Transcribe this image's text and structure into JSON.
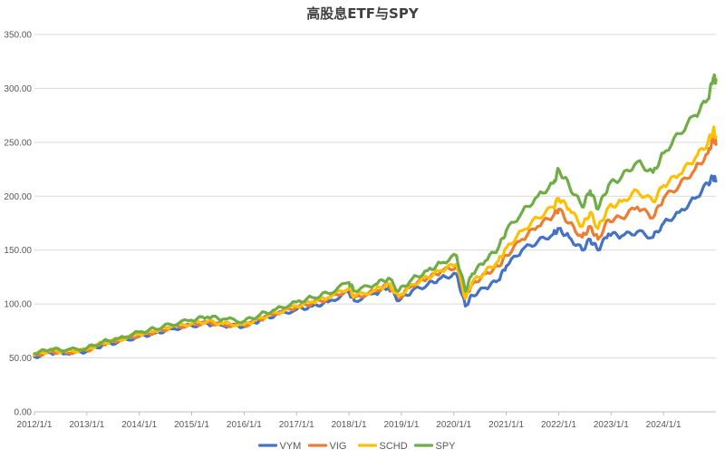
{
  "chart_data": {
    "type": "line",
    "title": "高股息ETF与SPY",
    "xlabel": "",
    "ylabel": "",
    "x_ticks": [
      "2012/1/1",
      "2013/1/1",
      "2014/1/1",
      "2015/1/1",
      "2016/1/1",
      "2017/1/1",
      "2018/1/1",
      "2019/1/1",
      "2020/1/1",
      "2021/1/1",
      "2022/1/1",
      "2023/1/1",
      "2024/1/1"
    ],
    "y_ticks": [
      "0.00",
      "50.00",
      "100.00",
      "150.00",
      "200.00",
      "250.00",
      "300.00",
      "350.00"
    ],
    "xlim": [
      2012.0,
      2025.0
    ],
    "ylim": [
      0,
      350
    ],
    "grid": true,
    "legend_position": "bottom",
    "series": [
      {
        "name": "VYM",
        "color": "#4472C4",
        "points": [
          [
            2012.0,
            51
          ],
          [
            2012.3,
            55
          ],
          [
            2012.6,
            54
          ],
          [
            2013.0,
            56
          ],
          [
            2013.3,
            62
          ],
          [
            2013.6,
            65
          ],
          [
            2014.0,
            70
          ],
          [
            2014.3,
            73
          ],
          [
            2014.6,
            77
          ],
          [
            2015.0,
            80
          ],
          [
            2015.3,
            82
          ],
          [
            2015.6,
            80
          ],
          [
            2016.0,
            79
          ],
          [
            2016.3,
            85
          ],
          [
            2016.6,
            90
          ],
          [
            2017.0,
            95
          ],
          [
            2017.3,
            98
          ],
          [
            2017.6,
            102
          ],
          [
            2018.0,
            111
          ],
          [
            2018.1,
            103
          ],
          [
            2018.5,
            110
          ],
          [
            2018.75,
            115
          ],
          [
            2018.95,
            103
          ],
          [
            2019.2,
            112
          ],
          [
            2019.5,
            118
          ],
          [
            2019.75,
            124
          ],
          [
            2020.05,
            128
          ],
          [
            2020.22,
            98
          ],
          [
            2020.35,
            108
          ],
          [
            2020.6,
            115
          ],
          [
            2020.85,
            122
          ],
          [
            2021.0,
            135
          ],
          [
            2021.3,
            150
          ],
          [
            2021.6,
            158
          ],
          [
            2021.9,
            165
          ],
          [
            2022.0,
            170
          ],
          [
            2022.2,
            162
          ],
          [
            2022.45,
            150
          ],
          [
            2022.6,
            160
          ],
          [
            2022.75,
            150
          ],
          [
            2022.95,
            165
          ],
          [
            2023.2,
            163
          ],
          [
            2023.5,
            167
          ],
          [
            2023.8,
            162
          ],
          [
            2024.0,
            175
          ],
          [
            2024.3,
            185
          ],
          [
            2024.6,
            198
          ],
          [
            2024.85,
            212
          ],
          [
            2024.95,
            218
          ],
          [
            2025.0,
            214
          ]
        ]
      },
      {
        "name": "VIG",
        "color": "#ED7D31",
        "points": [
          [
            2012.0,
            52
          ],
          [
            2012.3,
            56
          ],
          [
            2012.6,
            55
          ],
          [
            2013.0,
            57
          ],
          [
            2013.3,
            63
          ],
          [
            2013.6,
            66
          ],
          [
            2014.0,
            71
          ],
          [
            2014.3,
            74
          ],
          [
            2014.6,
            78
          ],
          [
            2015.0,
            81
          ],
          [
            2015.3,
            83
          ],
          [
            2015.6,
            81
          ],
          [
            2016.0,
            80
          ],
          [
            2016.3,
            86
          ],
          [
            2016.6,
            91
          ],
          [
            2017.0,
            97
          ],
          [
            2017.3,
            101
          ],
          [
            2017.6,
            105
          ],
          [
            2018.0,
            114
          ],
          [
            2018.1,
            106
          ],
          [
            2018.5,
            112
          ],
          [
            2018.75,
            118
          ],
          [
            2018.95,
            106
          ],
          [
            2019.2,
            117
          ],
          [
            2019.5,
            124
          ],
          [
            2019.75,
            130
          ],
          [
            2020.05,
            135
          ],
          [
            2020.22,
            108
          ],
          [
            2020.35,
            118
          ],
          [
            2020.6,
            128
          ],
          [
            2020.85,
            135
          ],
          [
            2021.0,
            145
          ],
          [
            2021.3,
            160
          ],
          [
            2021.6,
            172
          ],
          [
            2021.9,
            182
          ],
          [
            2022.0,
            188
          ],
          [
            2022.2,
            175
          ],
          [
            2022.45,
            162
          ],
          [
            2022.6,
            172
          ],
          [
            2022.75,
            160
          ],
          [
            2022.95,
            178
          ],
          [
            2023.2,
            180
          ],
          [
            2023.5,
            190
          ],
          [
            2023.8,
            180
          ],
          [
            2024.0,
            198
          ],
          [
            2024.3,
            210
          ],
          [
            2024.6,
            225
          ],
          [
            2024.85,
            240
          ],
          [
            2024.95,
            255
          ],
          [
            2025.0,
            248
          ]
        ]
      },
      {
        "name": "SCHD",
        "color": "#FFC000",
        "points": [
          [
            2012.0,
            53
          ],
          [
            2012.3,
            57
          ],
          [
            2012.6,
            56
          ],
          [
            2013.0,
            58
          ],
          [
            2013.3,
            64
          ],
          [
            2013.6,
            67
          ],
          [
            2014.0,
            72
          ],
          [
            2014.3,
            75
          ],
          [
            2014.6,
            79
          ],
          [
            2015.0,
            82
          ],
          [
            2015.3,
            84
          ],
          [
            2015.6,
            82
          ],
          [
            2016.0,
            81
          ],
          [
            2016.3,
            87
          ],
          [
            2016.6,
            92
          ],
          [
            2017.0,
            98
          ],
          [
            2017.3,
            102
          ],
          [
            2017.6,
            106
          ],
          [
            2018.0,
            115
          ],
          [
            2018.1,
            107
          ],
          [
            2018.5,
            113
          ],
          [
            2018.75,
            119
          ],
          [
            2018.95,
            107
          ],
          [
            2019.2,
            118
          ],
          [
            2019.5,
            125
          ],
          [
            2019.75,
            131
          ],
          [
            2020.05,
            137
          ],
          [
            2020.22,
            105
          ],
          [
            2020.35,
            120
          ],
          [
            2020.6,
            130
          ],
          [
            2020.85,
            140
          ],
          [
            2021.0,
            152
          ],
          [
            2021.3,
            168
          ],
          [
            2021.6,
            180
          ],
          [
            2021.9,
            190
          ],
          [
            2022.0,
            198
          ],
          [
            2022.2,
            188
          ],
          [
            2022.45,
            172
          ],
          [
            2022.6,
            185
          ],
          [
            2022.75,
            170
          ],
          [
            2022.95,
            190
          ],
          [
            2023.2,
            195
          ],
          [
            2023.5,
            205
          ],
          [
            2023.8,
            195
          ],
          [
            2024.0,
            210
          ],
          [
            2024.3,
            220
          ],
          [
            2024.6,
            235
          ],
          [
            2024.85,
            250
          ],
          [
            2024.95,
            262
          ],
          [
            2025.0,
            255
          ]
        ]
      },
      {
        "name": "SPY",
        "color": "#70AD47",
        "points": [
          [
            2012.0,
            54
          ],
          [
            2012.3,
            58
          ],
          [
            2012.6,
            57
          ],
          [
            2013.0,
            59
          ],
          [
            2013.3,
            65
          ],
          [
            2013.6,
            68
          ],
          [
            2014.0,
            74
          ],
          [
            2014.3,
            77
          ],
          [
            2014.6,
            81
          ],
          [
            2015.0,
            85
          ],
          [
            2015.3,
            88
          ],
          [
            2015.6,
            86
          ],
          [
            2016.0,
            84
          ],
          [
            2016.3,
            90
          ],
          [
            2016.6,
            95
          ],
          [
            2017.0,
            102
          ],
          [
            2017.3,
            106
          ],
          [
            2017.6,
            110
          ],
          [
            2018.0,
            120
          ],
          [
            2018.1,
            112
          ],
          [
            2018.5,
            118
          ],
          [
            2018.75,
            124
          ],
          [
            2018.95,
            112
          ],
          [
            2019.2,
            123
          ],
          [
            2019.5,
            131
          ],
          [
            2019.75,
            138
          ],
          [
            2020.05,
            145
          ],
          [
            2020.22,
            112
          ],
          [
            2020.35,
            128
          ],
          [
            2020.6,
            140
          ],
          [
            2020.85,
            152
          ],
          [
            2021.0,
            168
          ],
          [
            2021.3,
            185
          ],
          [
            2021.6,
            200
          ],
          [
            2021.9,
            212
          ],
          [
            2022.0,
            225
          ],
          [
            2022.2,
            210
          ],
          [
            2022.45,
            190
          ],
          [
            2022.6,
            205
          ],
          [
            2022.75,
            188
          ],
          [
            2022.95,
            210
          ],
          [
            2023.2,
            218
          ],
          [
            2023.5,
            232
          ],
          [
            2023.8,
            222
          ],
          [
            2024.0,
            240
          ],
          [
            2024.3,
            258
          ],
          [
            2024.6,
            275
          ],
          [
            2024.85,
            290
          ],
          [
            2024.95,
            310
          ],
          [
            2025.0,
            308
          ]
        ]
      }
    ]
  }
}
